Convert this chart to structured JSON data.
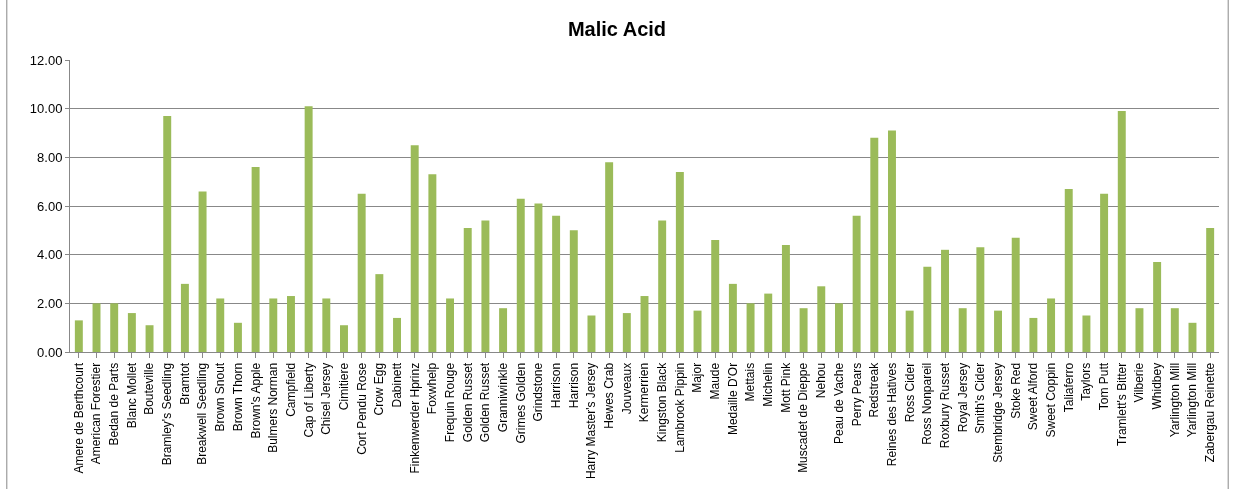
{
  "chart_data": {
    "type": "bar",
    "title": "Malic Acid",
    "categories": [
      "Amere de Berthcourt",
      "American Forestier",
      "Bedan de Parts",
      "Blanc Mollet",
      "Bouteville",
      "Bramley's Seedling",
      "Bramtot",
      "Breakwell Seedling",
      "Brown Snout",
      "Brown Thorn",
      "Brown's Apple",
      "Bulmers Norman",
      "Campfield",
      "Cap of Liberty",
      "Chisel Jersey",
      "Cimitiere",
      "Cort Pendu Rose",
      "Crow Egg",
      "Dabinett",
      "Finkenwerder Hprinz",
      "Foxwhelp",
      "Frequin Rouge",
      "Golden Russet",
      "Golden Russet",
      "Granniwinkle",
      "Grimes Golden",
      "Grindstone",
      "Harrison",
      "Harrison",
      "Harry Master's Jersey",
      "Hewes Crab",
      "Jouveaux",
      "Kermerrien",
      "Kingston Black",
      "Lambrook Pippin",
      "Major",
      "Maude",
      "Medaille D'Or",
      "Mettais",
      "Michelin",
      "Mott Pink",
      "Muscadet de Dieppe",
      "Nehou",
      "Peau de Vache",
      "Perry Pears",
      "Redstreak",
      "Reines des Hatives",
      "Ross Cider",
      "Ross Nonpareil",
      "Roxbury Russet",
      "Royal Jersey",
      "Smith's Cider",
      "Stembridge Jersey",
      "Stoke Red",
      "Sweet Alford",
      "Sweet Coppin",
      "Taliaferro",
      "Taylors",
      "Tom Putt",
      "Tramlett's Bitter",
      "Vilberie",
      "Whidbey",
      "Yarlington Mill",
      "Yarlington Mill",
      "Zabergau Reinette"
    ],
    "values": [
      1.3,
      2.0,
      2.0,
      1.6,
      1.1,
      9.7,
      2.8,
      6.6,
      2.2,
      1.2,
      7.6,
      2.2,
      2.3,
      10.1,
      2.2,
      1.1,
      6.5,
      3.2,
      1.4,
      8.5,
      7.3,
      2.2,
      5.1,
      5.4,
      1.8,
      6.3,
      6.1,
      5.6,
      5.0,
      1.5,
      7.8,
      1.6,
      2.3,
      5.4,
      7.4,
      1.7,
      4.6,
      2.8,
      2.0,
      2.4,
      4.4,
      1.8,
      2.7,
      2.0,
      5.6,
      8.8,
      9.1,
      1.7,
      3.5,
      4.2,
      1.8,
      4.3,
      1.7,
      4.7,
      1.4,
      2.2,
      6.7,
      1.5,
      6.5,
      9.9,
      1.8,
      3.7,
      1.8,
      1.2,
      5.1
    ],
    "color": "#9bbb59",
    "ylim": [
      0,
      12
    ],
    "yticks": [
      {
        "value": 0,
        "label": "0.00"
      },
      {
        "value": 2,
        "label": "2.00"
      },
      {
        "value": 4,
        "label": "4.00"
      },
      {
        "value": 6,
        "label": "6.00"
      },
      {
        "value": 8,
        "label": "8.00"
      },
      {
        "value": 10,
        "label": "10.00"
      },
      {
        "value": 12,
        "label": "12.00"
      }
    ],
    "grid": "y"
  }
}
